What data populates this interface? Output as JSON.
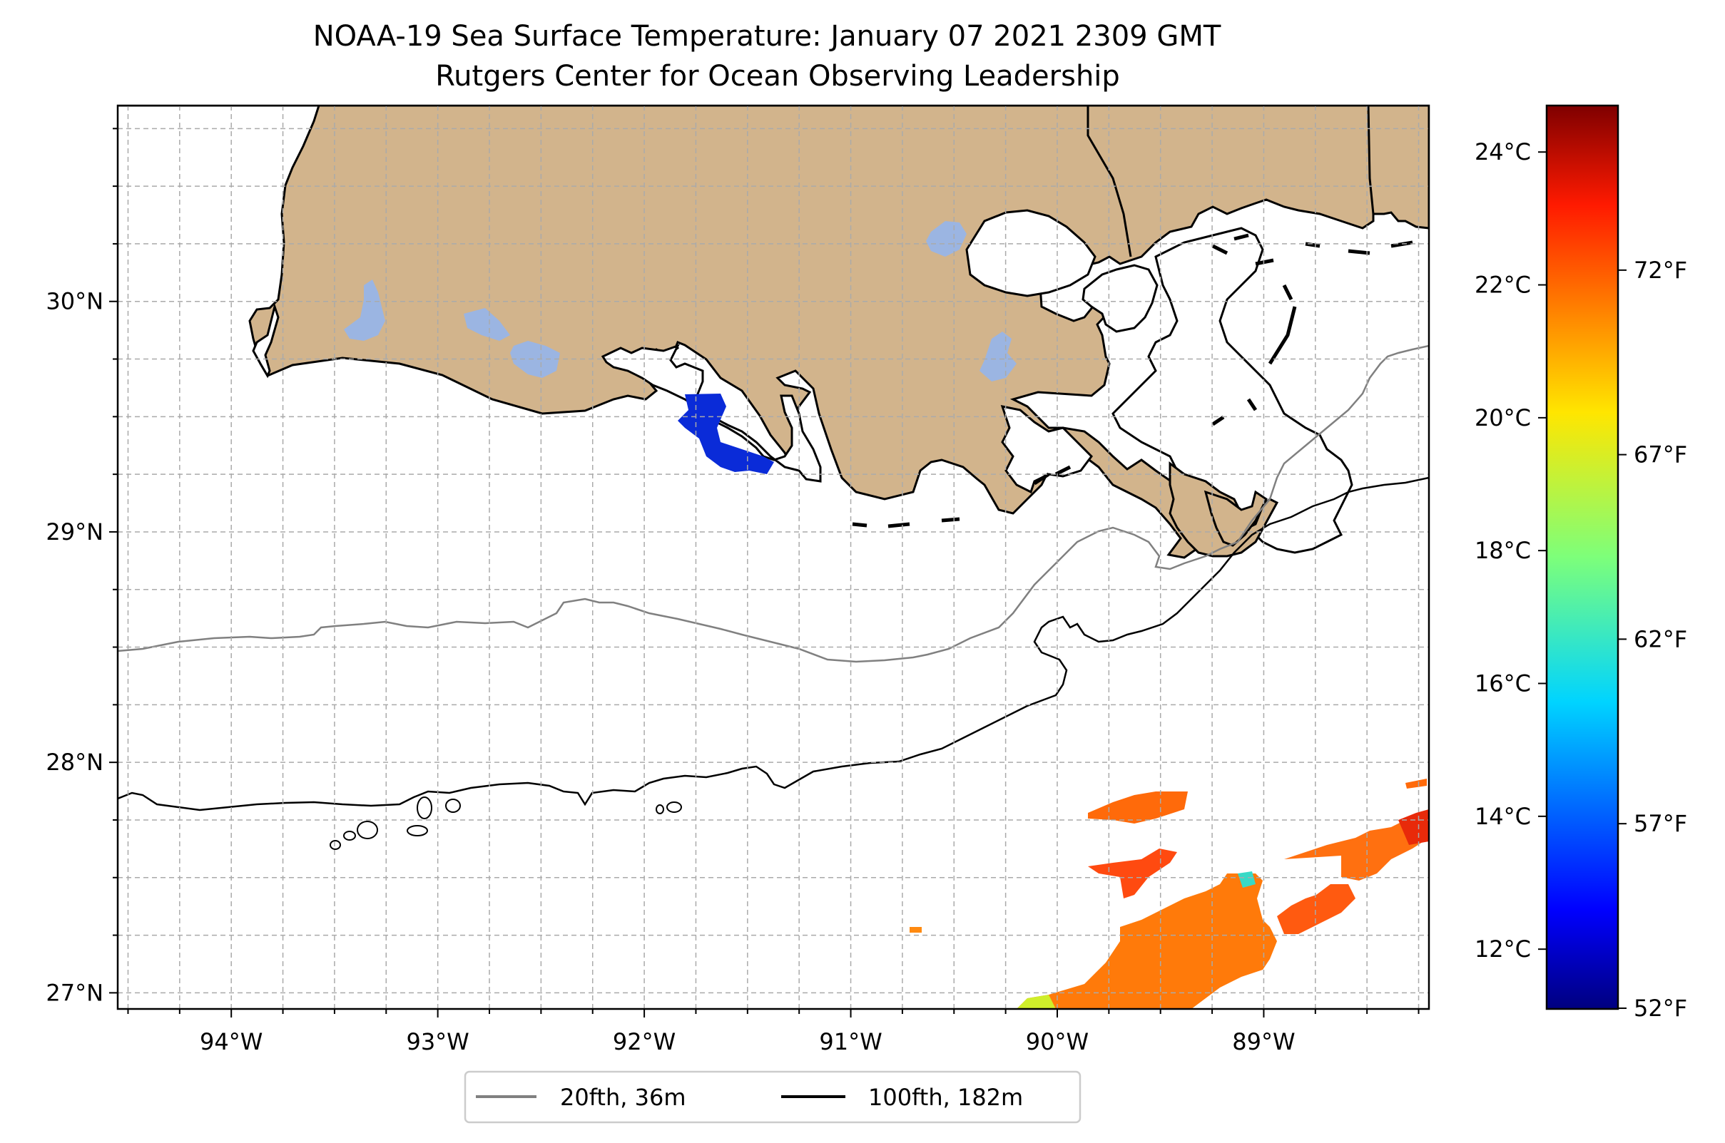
{
  "title": "NOAA-19 Sea Surface Temperature: January 07 2021 2309 GMT",
  "subtitle": "Rutgers Center for Ocean Observing Leadership",
  "map": {
    "lon_range": [
      -94.55,
      -88.2
    ],
    "lat_range": [
      26.93,
      30.85
    ],
    "lon_ticks": [
      "94°W",
      "93°W",
      "92°W",
      "91°W",
      "90°W",
      "89°W"
    ],
    "lat_ticks": [
      "27°N",
      "28°N",
      "29°N",
      "30°N"
    ],
    "grid": true,
    "colors": {
      "land": "#d2b48c",
      "lakes": "#9bb5e2",
      "ocean": "#ffffff",
      "contour_20fth": "#808080",
      "contour_100fth": "#000000"
    }
  },
  "colorbar": {
    "colormap": "jet",
    "celsius_ticks": [
      "24°C",
      "22°C",
      "20°C",
      "18°C",
      "16°C",
      "14°C",
      "12°C"
    ],
    "fahrenheit_ticks": [
      "72°F",
      "67°F",
      "62°F",
      "57°F",
      "52°F"
    ],
    "range_c": [
      11.1,
      24.7
    ]
  },
  "legend": {
    "items": [
      {
        "label": "20fth, 36m",
        "color": "#808080"
      },
      {
        "label": "100fth, 182m",
        "color": "#000000"
      }
    ],
    "placement": "bottom-center"
  }
}
